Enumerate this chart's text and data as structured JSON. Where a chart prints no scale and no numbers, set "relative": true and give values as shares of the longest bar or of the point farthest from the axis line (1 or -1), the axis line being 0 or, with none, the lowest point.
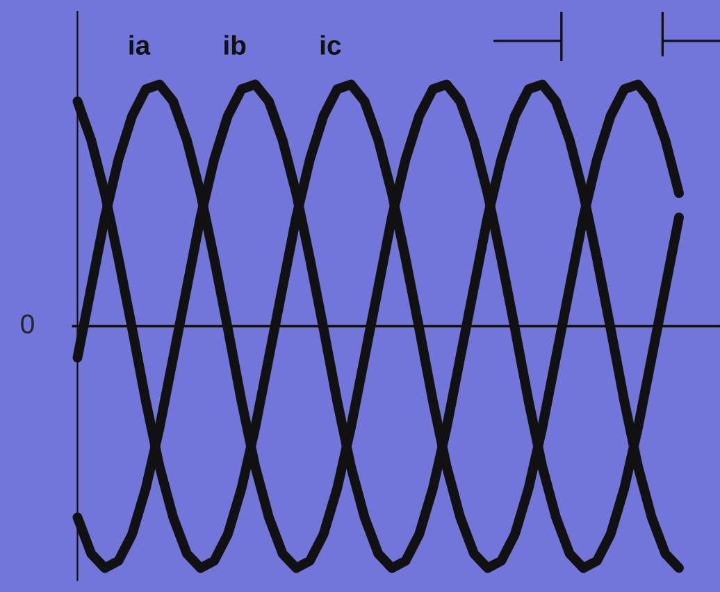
{
  "chart_data": {
    "type": "line",
    "relative": true,
    "legend": false,
    "marker": "none",
    "line_style": "solid",
    "categories": [
      null,
      null,
      null,
      null,
      null,
      null,
      null,
      null,
      null,
      null,
      null,
      null,
      null,
      null,
      null,
      null,
      null,
      null,
      null,
      null,
      null,
      null,
      null,
      null,
      null,
      null,
      null,
      null,
      null,
      null,
      null,
      null,
      null,
      null,
      null,
      null,
      null,
      null,
      null,
      null,
      null,
      null,
      null,
      null,
      null
    ],
    "annotations": [
      "0"
    ],
    "series": [
      {
        "name": "ia",
        "color": "#111111",
        "values": [
          -0.13,
          0.16,
          0.45,
          0.69,
          0.87,
          0.98,
          1,
          0.93,
          0.77,
          0.55,
          0.28,
          -0.01,
          -0.31,
          -0.58,
          -0.79,
          -0.94,
          -1,
          -0.97,
          -0.86,
          -0.67,
          -0.42,
          -0.13,
          0.16,
          0.45,
          0.69,
          0.87,
          0.98,
          1,
          0.93,
          0.77,
          0.55,
          0.28,
          -0.01,
          -0.31,
          -0.58,
          -0.79,
          -0.94,
          -1,
          -0.97,
          -0.86,
          -0.67,
          -0.42,
          -0.13,
          0.16,
          0.45
        ]
      },
      {
        "name": "ib",
        "color": "#111111",
        "values": [
          -0.79,
          -0.94,
          -1,
          -0.97,
          -0.86,
          -0.67,
          -0.42,
          -0.13,
          0.16,
          0.45,
          0.69,
          0.87,
          0.98,
          1,
          0.93,
          0.77,
          0.55,
          0.28,
          -0.01,
          -0.31,
          -0.58,
          -0.79,
          -0.94,
          -1,
          -0.97,
          -0.86,
          -0.67,
          -0.42,
          -0.13,
          0.16,
          0.45,
          0.69,
          0.87,
          0.98,
          1,
          0.93,
          0.77,
          0.55,
          0.28,
          -0.01,
          -0.31,
          -0.58,
          -0.79,
          -0.94,
          -1
        ]
      },
      {
        "name": "ic",
        "color": "#111111",
        "values": [
          0.93,
          0.77,
          0.55,
          0.28,
          -0.01,
          -0.31,
          -0.58,
          -0.79,
          -0.94,
          -1,
          -0.97,
          -0.86,
          -0.67,
          -0.42,
          -0.13,
          0.16,
          0.45,
          0.69,
          0.87,
          0.98,
          1,
          0.93,
          0.77,
          0.55,
          0.28,
          -0.01,
          -0.31,
          -0.58,
          -0.79,
          -0.94,
          -1,
          -0.97,
          -0.86,
          -0.67,
          -0.42,
          -0.13,
          0.16,
          0.45,
          0.69,
          0.87,
          0.98,
          1,
          0.93,
          0.77,
          0.55
        ]
      }
    ]
  }
}
